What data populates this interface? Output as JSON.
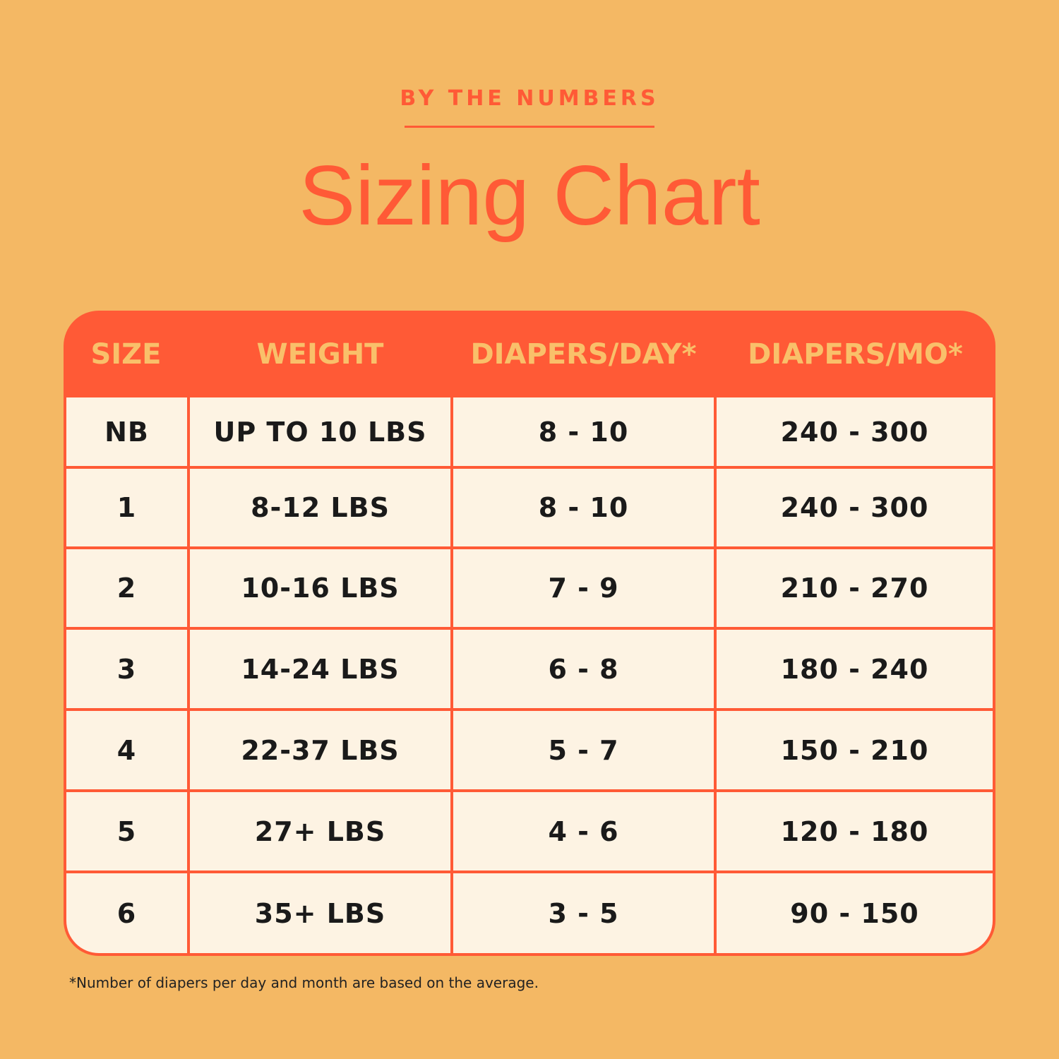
{
  "eyebrow": "BY THE NUMBERS",
  "title": "Sizing Chart",
  "colors": {
    "background": "#F4B864",
    "accent": "#FF5A36",
    "cell": "#FDF3E3",
    "header_text": "#F9C06A"
  },
  "table": {
    "headers": [
      "SIZE",
      "WEIGHT",
      "DIAPERS/DAY*",
      "DIAPERS/MO*"
    ],
    "rows": [
      [
        "NB",
        "UP TO 10 LBS",
        "8 - 10",
        "240 - 300"
      ],
      [
        "1",
        "8-12 LBS",
        "8 - 10",
        "240 - 300"
      ],
      [
        "2",
        "10-16 LBS",
        "7 - 9",
        "210 - 270"
      ],
      [
        "3",
        "14-24 LBS",
        "6 - 8",
        "180 - 240"
      ],
      [
        "4",
        "22-37 LBS",
        "5 - 7",
        "150 - 210"
      ],
      [
        "5",
        "27+ LBS",
        "4 - 6",
        "120 - 180"
      ],
      [
        "6",
        "35+ LBS",
        "3 - 5",
        "90 - 150"
      ]
    ]
  },
  "footnote": "*Number of diapers per day and month are based on the average."
}
